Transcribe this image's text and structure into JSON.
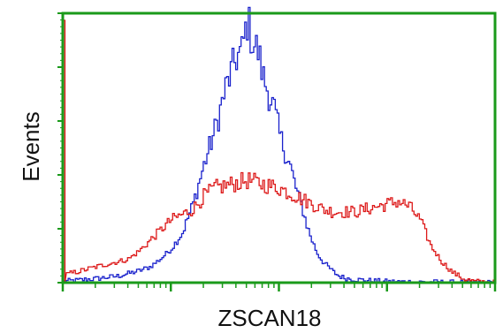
{
  "chart_data": {
    "type": "line",
    "title": "",
    "xlabel": "ZSCAN18",
    "ylabel": "Events",
    "x_scale": "log",
    "xlim": [
      1,
      10000
    ],
    "ylim": [
      0,
      100
    ],
    "grid": false,
    "legend": "none",
    "frame_color": "#1a9a1a",
    "series": [
      {
        "color": "#1a22cc",
        "points": [
          [
            1.0,
            0.5
          ],
          [
            1.3,
            0.8
          ],
          [
            1.6,
            1.2
          ],
          [
            2.0,
            1.5
          ],
          [
            2.5,
            2.0
          ],
          [
            3.2,
            2.5
          ],
          [
            4.0,
            3.5
          ],
          [
            5.0,
            4.5
          ],
          [
            6.3,
            6.0
          ],
          [
            7.9,
            9.0
          ],
          [
            10.0,
            13.0
          ],
          [
            12.6,
            19.0
          ],
          [
            15.8,
            30.0
          ],
          [
            20.0,
            45.0
          ],
          [
            25.1,
            58.0
          ],
          [
            31.6,
            74.0
          ],
          [
            39.8,
            86.0
          ],
          [
            44.7,
            88.0
          ],
          [
            50.1,
            100.0
          ],
          [
            56.2,
            92.0
          ],
          [
            63.1,
            88.0
          ],
          [
            70.8,
            78.0
          ],
          [
            79.4,
            72.0
          ],
          [
            89.1,
            66.0
          ],
          [
            100.0,
            56.0
          ],
          [
            112.2,
            50.0
          ],
          [
            125.9,
            44.0
          ],
          [
            141.3,
            36.0
          ],
          [
            158.5,
            30.0
          ],
          [
            177.8,
            22.0
          ],
          [
            199.5,
            16.0
          ],
          [
            223.9,
            11.0
          ],
          [
            251.2,
            8.0
          ],
          [
            281.8,
            6.0
          ],
          [
            316.2,
            4.0
          ],
          [
            354.8,
            2.5
          ],
          [
            398.1,
            1.8
          ],
          [
            501.2,
            1.2
          ],
          [
            631.0,
            0.9
          ],
          [
            794.3,
            0.6
          ],
          [
            1000.0,
            0.4
          ],
          [
            1584.9,
            0.3
          ],
          [
            2511.9,
            0.2
          ],
          [
            3981.1,
            0.1
          ],
          [
            10000.0,
            0.0
          ]
        ]
      },
      {
        "color": "#dd1a1a",
        "points": [
          [
            1.0,
            100.0
          ],
          [
            1.03,
            3.0
          ],
          [
            1.3,
            4.0
          ],
          [
            1.6,
            5.0
          ],
          [
            2.0,
            6.0
          ],
          [
            2.5,
            7.0
          ],
          [
            3.2,
            8.0
          ],
          [
            4.0,
            9.0
          ],
          [
            5.0,
            12.0
          ],
          [
            6.3,
            16.0
          ],
          [
            7.9,
            20.0
          ],
          [
            10.0,
            24.0
          ],
          [
            12.6,
            26.0
          ],
          [
            15.8,
            28.0
          ],
          [
            20.0,
            33.0
          ],
          [
            25.1,
            36.0
          ],
          [
            31.6,
            37.0
          ],
          [
            39.8,
            38.0
          ],
          [
            50.1,
            39.0
          ],
          [
            63.1,
            38.0
          ],
          [
            79.4,
            37.0
          ],
          [
            100.0,
            36.0
          ],
          [
            125.9,
            34.0
          ],
          [
            158.5,
            32.0
          ],
          [
            199.5,
            30.0
          ],
          [
            251.2,
            28.0
          ],
          [
            316.2,
            27.0
          ],
          [
            398.1,
            27.0
          ],
          [
            501.2,
            27.0
          ],
          [
            631.0,
            28.0
          ],
          [
            794.3,
            29.0
          ],
          [
            1000.0,
            30.0
          ],
          [
            1258.9,
            31.0
          ],
          [
            1584.9,
            29.0
          ],
          [
            1995.3,
            24.0
          ],
          [
            2511.9,
            14.0
          ],
          [
            3162.3,
            8.0
          ],
          [
            3981.1,
            4.0
          ],
          [
            5011.9,
            1.5
          ],
          [
            6309.6,
            0.5
          ],
          [
            7943.3,
            0.2
          ],
          [
            10000.0,
            0.0
          ]
        ]
      }
    ]
  }
}
